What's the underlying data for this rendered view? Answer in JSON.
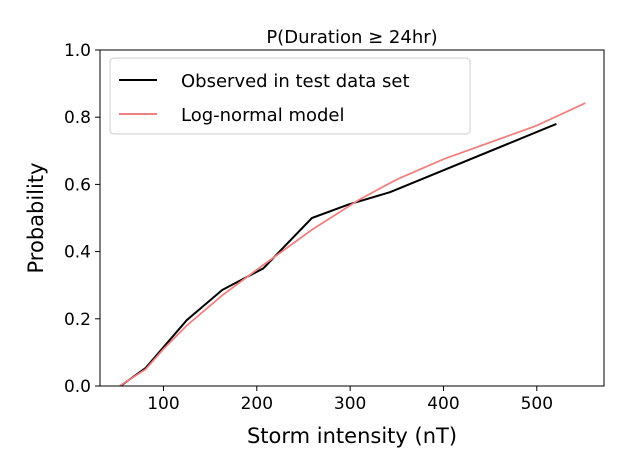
{
  "chart_data": {
    "type": "line",
    "title": "P(Duration ≥ 24hr)",
    "xlabel": "Storm intensity (nT)",
    "ylabel": "Probability",
    "xlim": [
      32,
      572
    ],
    "ylim": [
      0,
      1
    ],
    "xticks": [
      100,
      200,
      300,
      400,
      500
    ],
    "xtick_labels": [
      "100",
      "200",
      "300",
      "400",
      "500"
    ],
    "yticks": [
      0,
      0.2,
      0.4,
      0.6,
      0.8,
      1.0
    ],
    "ytick_labels": [
      "0.0",
      "0.2",
      "0.4",
      "0.6",
      "0.8",
      "1.0"
    ],
    "grid": false,
    "legend_position": "top-left",
    "series": [
      {
        "name": "Observed in test data set",
        "color": "#000000",
        "x": [
          54,
          81,
          125,
          163,
          207,
          259,
          298,
          343,
          521
        ],
        "y": [
          0.0,
          0.054,
          0.196,
          0.286,
          0.35,
          0.5,
          0.54,
          0.577,
          0.78
        ]
      },
      {
        "name": "Log-normal model",
        "color": "#f08080",
        "x": [
          53,
          81,
          100,
          125,
          163,
          207,
          259,
          310,
          350,
          400,
          450,
          500,
          552
        ],
        "y": [
          0.0,
          0.05,
          0.11,
          0.18,
          0.27,
          0.36,
          0.465,
          0.555,
          0.615,
          0.675,
          0.725,
          0.775,
          0.842
        ]
      }
    ]
  }
}
